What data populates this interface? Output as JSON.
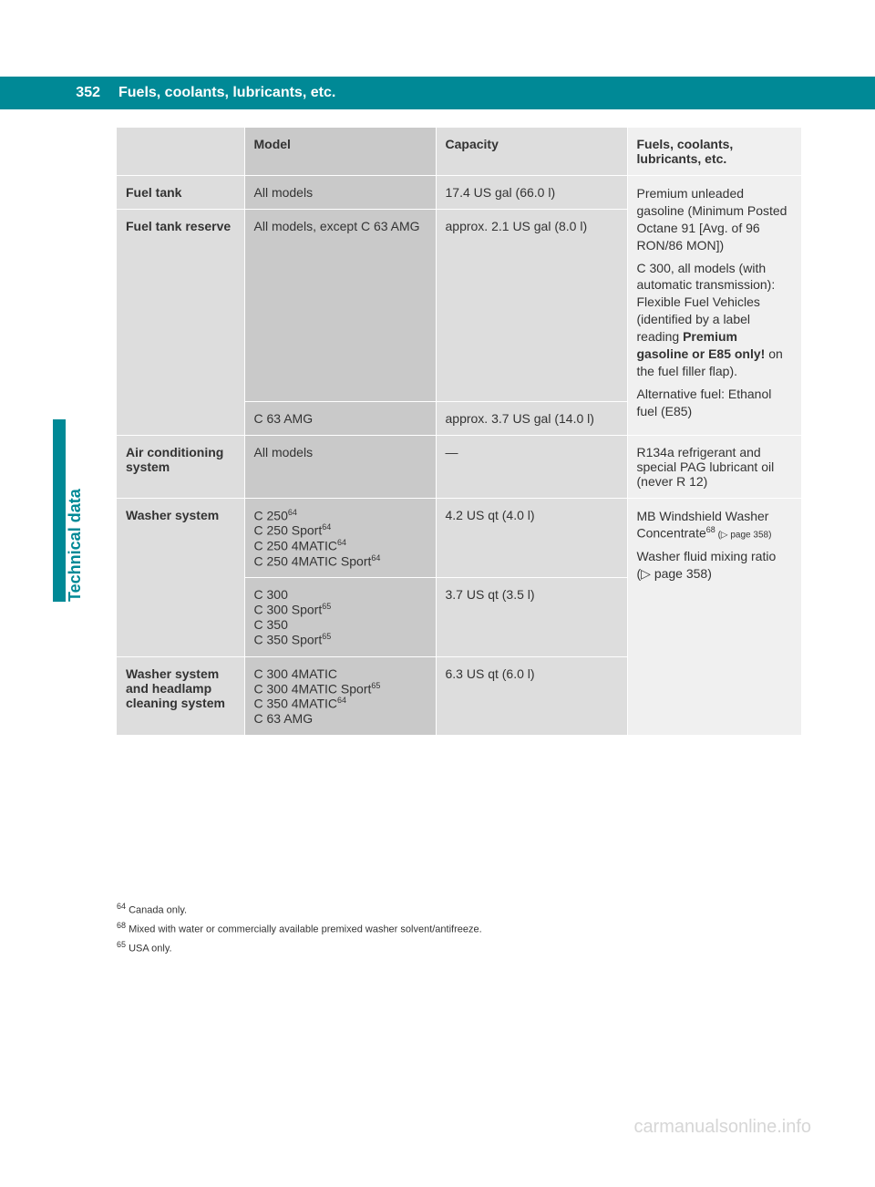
{
  "page_number": "352",
  "page_title": "Fuels, coolants, lubricants, etc.",
  "side_section": "Technical data",
  "table": {
    "headers": {
      "c1": "",
      "c2": "Model",
      "c3": "Capacity",
      "c4": "Fuels, coolants, lubricants, etc."
    },
    "fuel_tank_label": "Fuel tank",
    "fuel_tank_model": "All models",
    "fuel_tank_capacity": "17.4 US gal (66.0 l)",
    "fuel_reserve_label": "Fuel tank reserve",
    "fuel_reserve_model1": "All models, except C 63 AMG",
    "fuel_reserve_cap1": "approx. 2.1 US gal (8.0 l)",
    "fuel_reserve_model2": "C 63 AMG",
    "fuel_reserve_cap2": "approx. 3.7 US gal (14.0 l)",
    "fuel_spec_1": "Premium unleaded gasoline (Minimum Posted Octane 91 [Avg. of 96 RON/86 MON])",
    "fuel_spec_2a": "C 300, all models (with automatic transmission): Flexible Fuel Vehicles (identified by a label reading ",
    "fuel_spec_2b_bold": "Premium gasoline or E85 only!",
    "fuel_spec_2c": " on the fuel filler flap).",
    "fuel_spec_3": "Alternative fuel: Ethanol fuel (E85)",
    "ac_label": "Air conditioning system",
    "ac_model": "All models",
    "ac_capacity": "—",
    "ac_spec": "R134a refrigerant and special PAG lubricant oil (never R 12)",
    "washer_label": "Washer system",
    "washer_m1_l1": "C 250",
    "washer_m1_s1": "64",
    "washer_m1_l2": "C 250 Sport",
    "washer_m1_s2": "64",
    "washer_m1_l3": "C 250 4MATIC",
    "washer_m1_s3": "64",
    "washer_m1_l4": "C 250 4MATIC Sport",
    "washer_m1_s4": "64",
    "washer_c1": "4.2 US qt (4.0 l)",
    "washer_m2_l1": "C 300",
    "washer_m2_l2": "C 300 Sport",
    "washer_m2_s2": "65",
    "washer_m2_l3": "C 350",
    "washer_m2_l4": "C 350 Sport",
    "washer_m2_s4": "65",
    "washer_c2": "3.7 US qt (3.5 l)",
    "washer_spec_1a": "MB Windshield Washer Concentrate",
    "washer_spec_1a_sup": "68",
    "washer_spec_1b": " (▷ page 358)",
    "washer_spec_2": "Washer fluid mixing ratio (▷ page 358)",
    "washer_hl_label": "Washer system and headlamp cleaning system",
    "washer_hl_m_l1": "C 300 4MATIC",
    "washer_hl_m_l2": "C 300 4MATIC Sport",
    "washer_hl_m_s2": "65",
    "washer_hl_m_l3": "C 350 4MATIC",
    "washer_hl_m_s3": "64",
    "washer_hl_m_l4": "C 63 AMG",
    "washer_hl_cap": "6.3 US qt (6.0 l)"
  },
  "footnotes": {
    "f64_num": "64",
    "f64": " Canada only.",
    "f68_num": "68",
    "f68": " Mixed with water or commercially available premixed washer solvent/antifreeze.",
    "f65_num": "65",
    "f65": " USA only."
  },
  "watermark": "carmanualsonline.info"
}
